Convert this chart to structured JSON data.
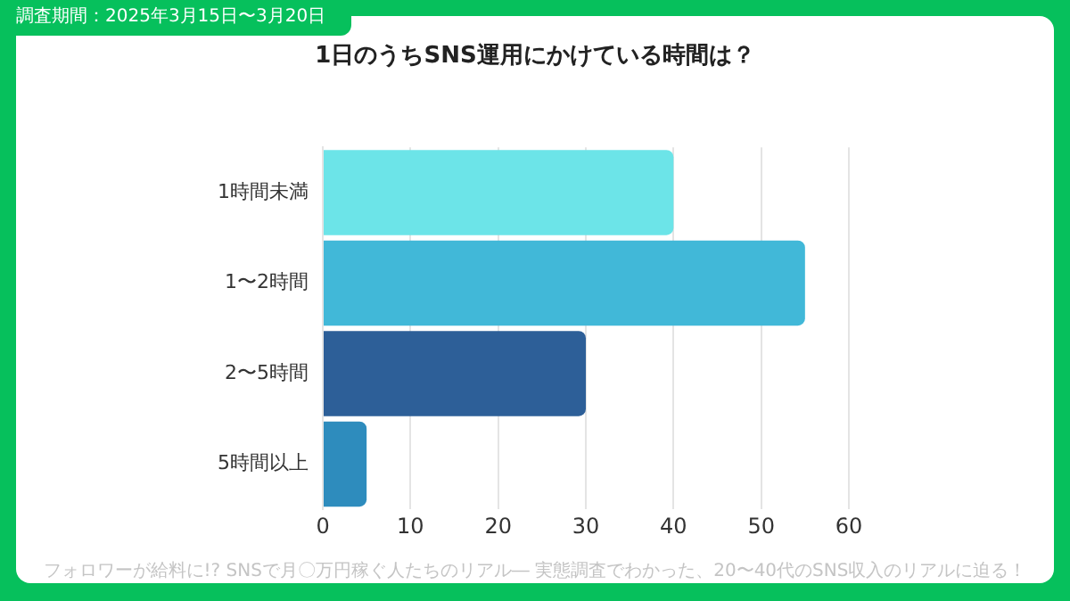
{
  "chart_data": {
    "type": "bar",
    "orientation": "horizontal",
    "title": "1日のうちSNS運用にかけている時間は？",
    "categories": [
      "1時間未満",
      "1〜2時間",
      "2〜5時間",
      "5時間以上"
    ],
    "values": [
      40,
      55,
      30,
      5
    ],
    "colors": [
      "#6ce4e8",
      "#41b8d8",
      "#2d5f98",
      "#2e8cbd"
    ],
    "xlim": [
      0,
      60
    ],
    "xticks": [
      0,
      10,
      20,
      30,
      40,
      50,
      60
    ],
    "grid": "x",
    "legend": false,
    "annotations": [
      "調査期間：2025年3月15日〜3月20日",
      "フォロワーが給料に!? SNSで月〇万円稼ぐ人たちのリアル― 実態調査でわかった、20〜40代のSNS収入のリアルに迫る！"
    ]
  }
}
